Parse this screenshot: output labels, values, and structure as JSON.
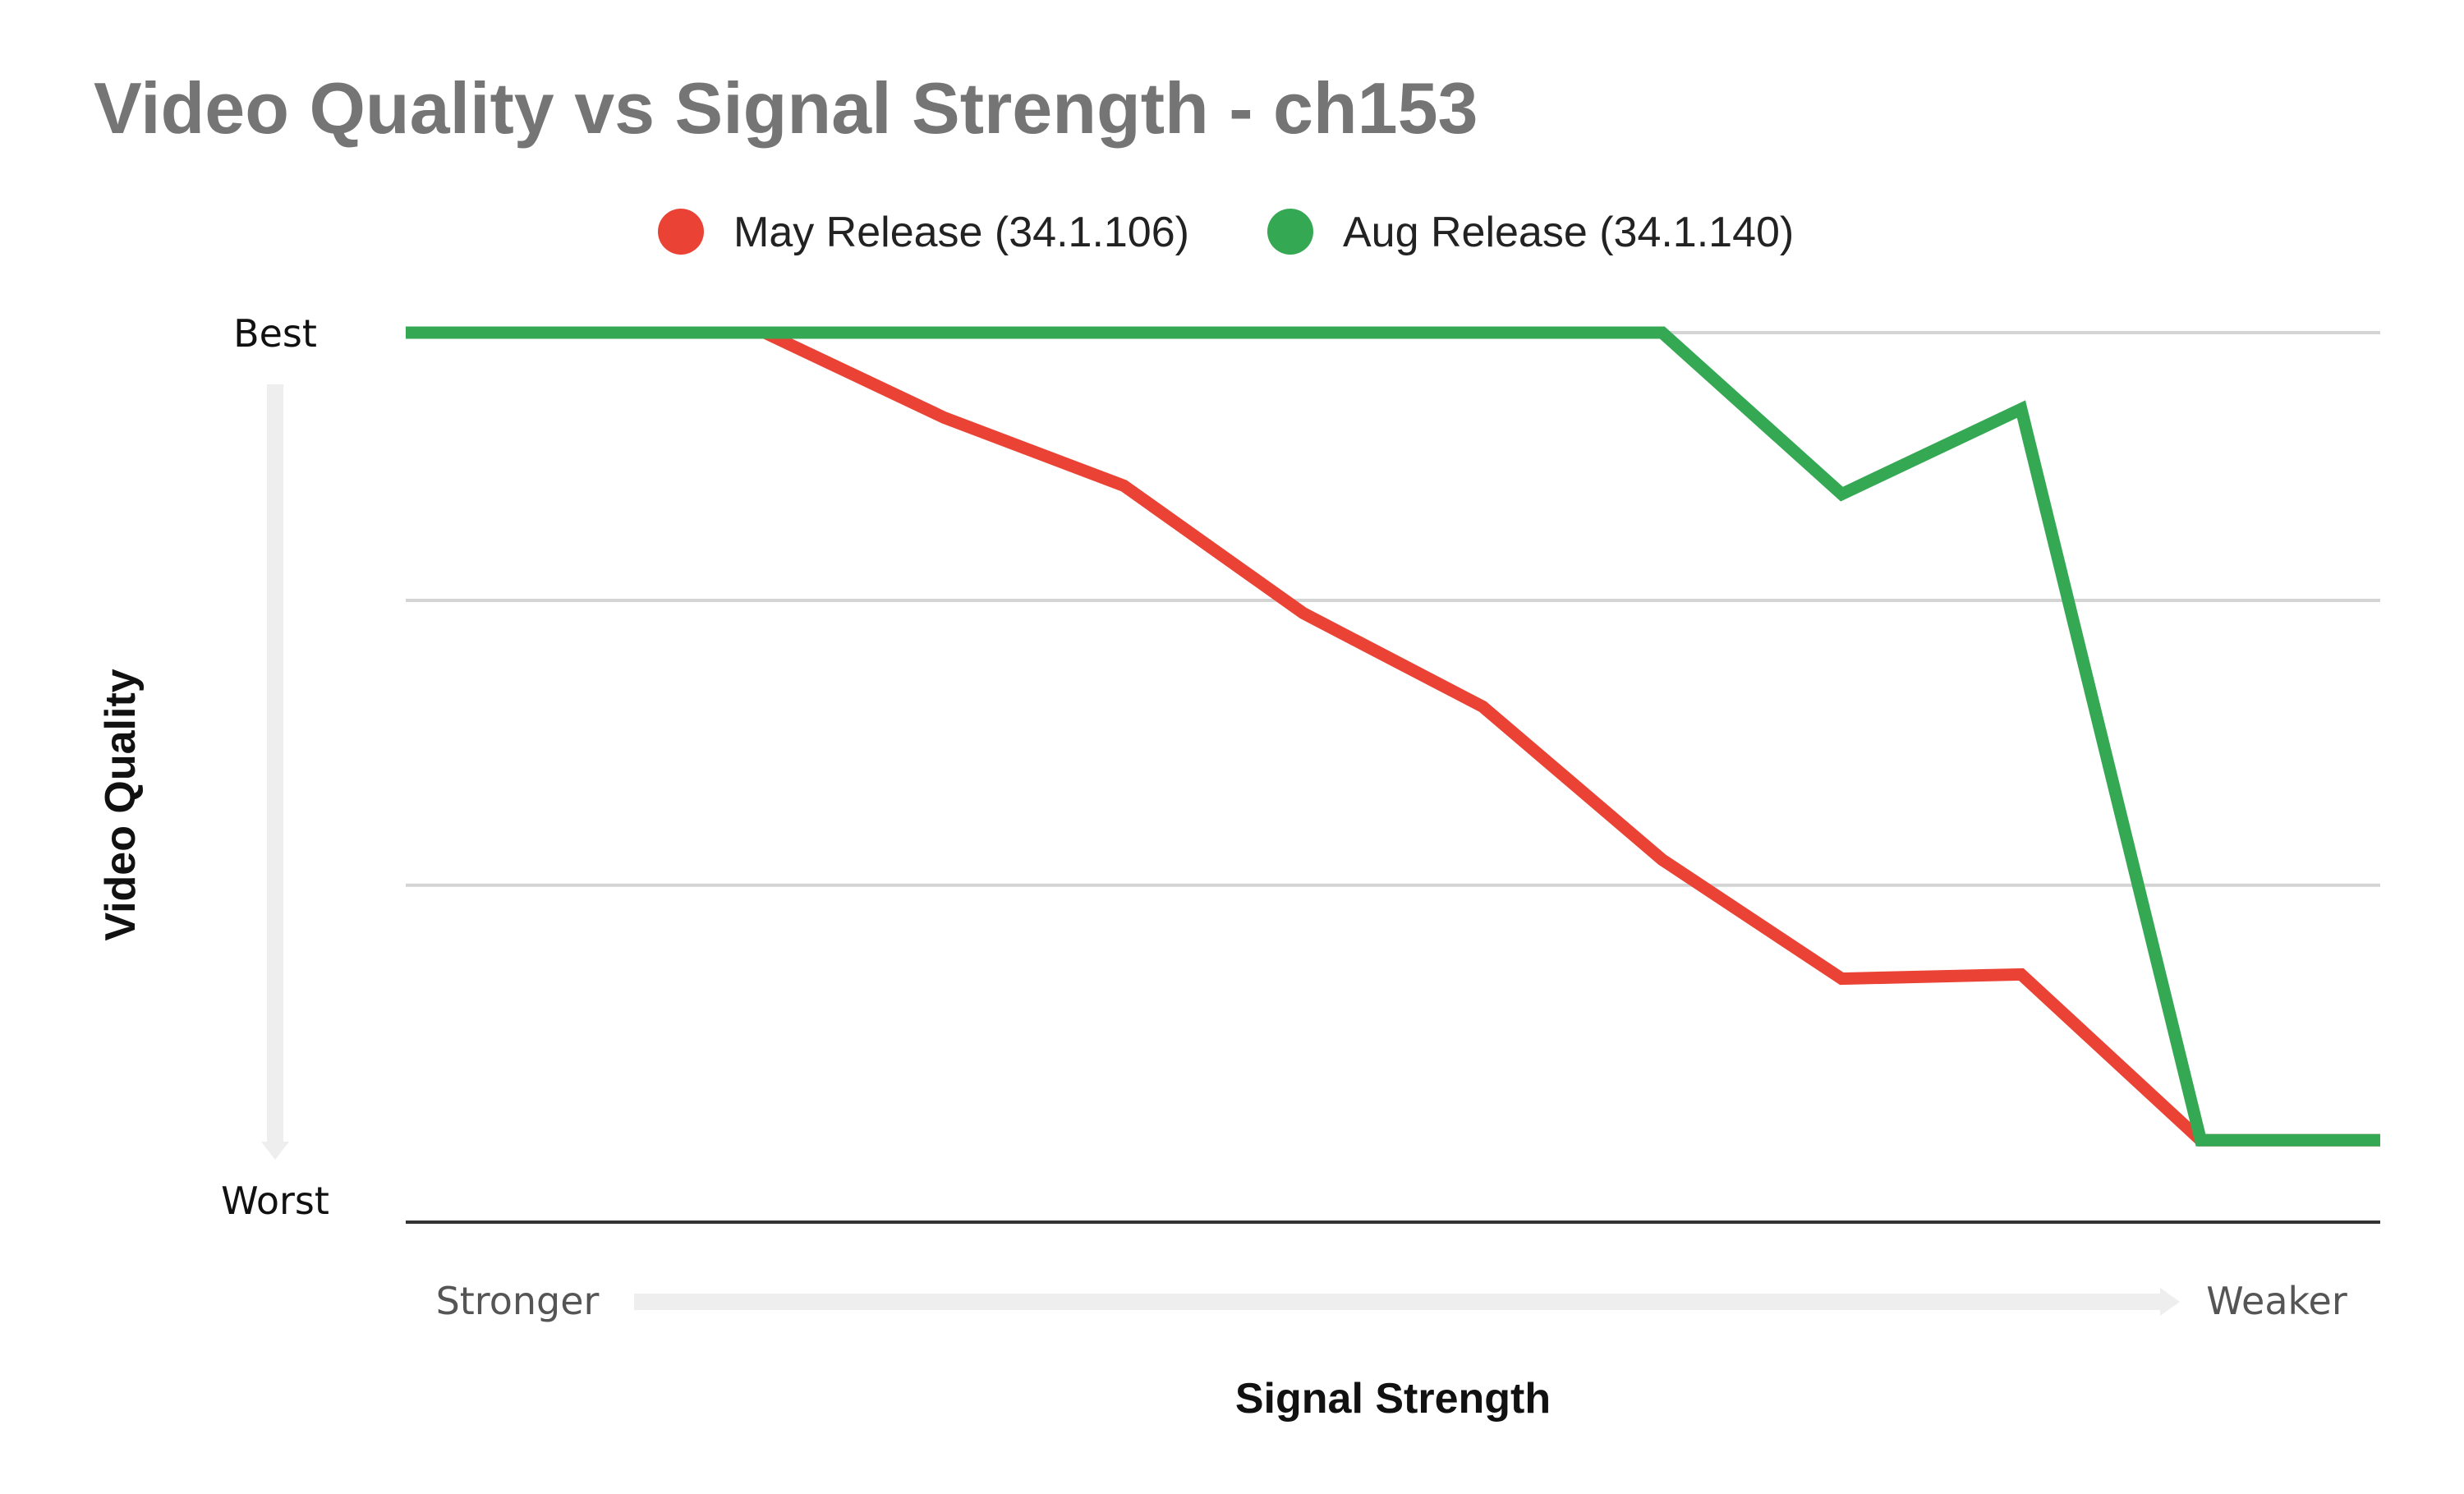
{
  "chart_data": {
    "type": "line",
    "title": "Video Quality vs Signal Strength - ch153",
    "xlabel": "Signal Strength",
    "ylabel": "Video Quality",
    "x_axis": {
      "start_label": "Stronger",
      "end_label": "Weaker"
    },
    "y_axis": {
      "top_label": "Best",
      "bottom_label": "Worst"
    },
    "x": [
      0,
      1,
      2,
      3,
      4,
      5,
      6,
      7,
      8,
      9,
      10,
      11
    ],
    "xlim": [
      0,
      11
    ],
    "ylim": [
      0,
      100
    ],
    "y_gridlines": [
      0,
      35,
      68.5,
      100
    ],
    "legend_position": "top",
    "grid": true,
    "series": [
      {
        "name": "May Release (34.1.106)",
        "color": "#EA4335",
        "values": [
          100,
          100,
          100,
          90,
          82,
          67,
          56,
          38,
          24,
          24.5,
          5,
          5
        ]
      },
      {
        "name": "Aug Release (34.1.140)",
        "color": "#34A853",
        "values": [
          100,
          100,
          100,
          100,
          100,
          100,
          100,
          100,
          81,
          91,
          5,
          5
        ]
      }
    ]
  }
}
